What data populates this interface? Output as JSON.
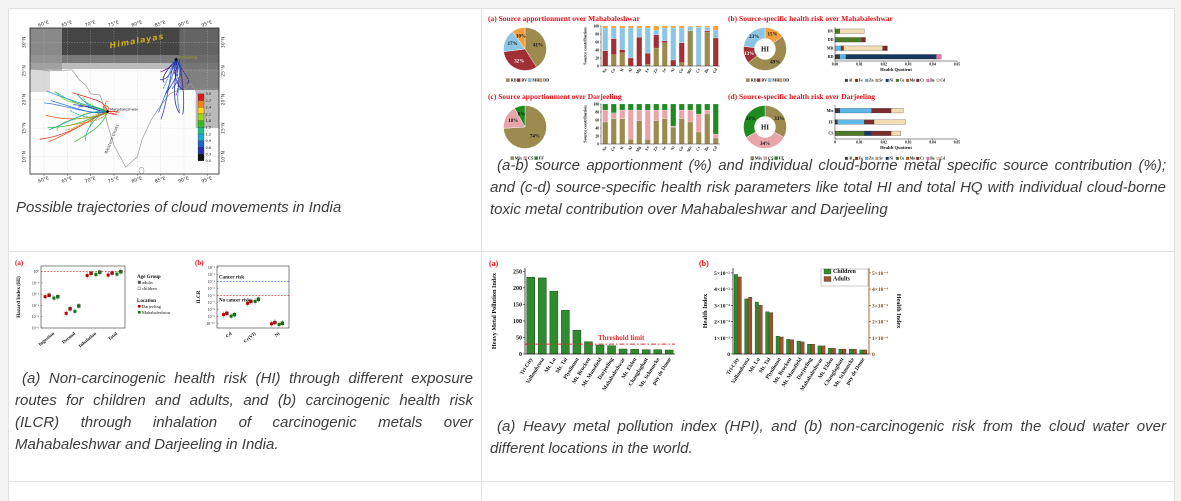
{
  "page": {
    "bg": "#f3f3f3",
    "cell_bg": "#ffffff",
    "border_color": "#e2e2e2"
  },
  "captions": {
    "map": "Possible trajectories of cloud movements in India",
    "apportionment": "(a-b) source apportionment (%) and individual cloud-borne metal specific source contribution (%); and (c-d) source-specific health risk parameters like total HI and total HQ with individual cloud-borne toxic metal contribution over Mahabaleshwar and Darjeeling",
    "risk": "(a) Non-carcinogenic health risk (HI) through different exposure routes for children and adults, and (b) carcinogenic health risk (ILCR) through inhalation of carcinogenic metals over Mahabaleshwar and Darjeeling in India.",
    "hpi": "(a) Heavy metal pollution index (HPI), and (b) non-carcinogenic risk from the cloud water over different locations in the world."
  },
  "chart_data": {
    "map": {
      "type": "map",
      "lon_ticks": [
        "60°E",
        "65°E",
        "70°E",
        "75°E",
        "80°E",
        "85°E",
        "90°E",
        "95°E"
      ],
      "lon_vals": [
        60,
        65,
        70,
        75,
        80,
        85,
        90,
        95
      ],
      "lat_ticks": [
        "30°N",
        "25°N",
        "20°N",
        "15°N",
        "10°N"
      ],
      "lat_vals": [
        30,
        25,
        20,
        15,
        10
      ],
      "region_label": "Himalayas",
      "ghats_label": "Western Ghats",
      "sites": [
        {
          "name": "Darjeeling",
          "lon": 88.3,
          "lat": 27.0,
          "label_color": "#a8a800"
        },
        {
          "name": "Mahabaleshwar",
          "lon": 73.6,
          "lat": 17.9,
          "label_color": "#222222"
        }
      ],
      "colorbar": {
        "ticks": [
          "3.0",
          "2.7",
          "2.4",
          "2.1",
          "1.8",
          "1.5",
          "1.2",
          "0.9",
          "0.6",
          "0.3",
          "0.0"
        ],
        "colors": [
          "#d7191c",
          "#f08019",
          "#ffd219",
          "#9bd41c",
          "#33bc22",
          "#1cc287",
          "#1fa8d8",
          "#2264cc",
          "#2d2db4",
          "#141414"
        ]
      },
      "clusters": [
        {
          "n": 24,
          "site": 1,
          "box": [
            59,
            12.5,
            71,
            21.5
          ],
          "seed": 7,
          "colors": [
            "#d7191c",
            "#f08019",
            "#ffd219",
            "#7ccc1c",
            "#2eb82e",
            "#13ae8e",
            "#22a3d8",
            "#2a6bd8",
            "#2233bb",
            "#13c013",
            "#0aa0c0",
            "#e84c0c"
          ]
        },
        {
          "n": 15,
          "site": 0,
          "box": [
            84.5,
            16,
            91,
            25
          ],
          "seed": 23,
          "colors": [
            "#2233bb",
            "#3a1c9c",
            "#5a10a0",
            "#1c58c8",
            "#1a1a80",
            "#26269c",
            "#2a7bd8"
          ]
        },
        {
          "n": 5,
          "site": 1,
          "box": [
            72.2,
            16.3,
            76.5,
            19.8
          ],
          "seed": 41,
          "colors": [
            "#d7191c",
            "#e84c0c",
            "#f08019"
          ]
        }
      ]
    },
    "metals": [
      "Na",
      "Ca",
      "K",
      "Al",
      "Mg",
      "Fe",
      "Zn",
      "Sr",
      "Ni",
      "Cu",
      "Mn",
      "Cr",
      "Ba",
      "Cd"
    ],
    "hq_metals": [
      "Al",
      "Fe",
      "Zn",
      "Sr",
      "Ni",
      "Cu",
      "Mn",
      "Cr",
      "Ba",
      "Cd"
    ],
    "metal_colors": {
      "Al": "#3b3b3b",
      "Fe": "#8b2f00",
      "Zn": "#5bb8e8",
      "Sr": "#c8a165",
      "Ni": "#17375e",
      "Cu": "#4e7a27",
      "Mn": "#c55a11",
      "Cr": "#7b2c2c",
      "Ba": "#e878b0",
      "Cd": "#f2dcb3"
    },
    "quad_a": {
      "type": "pie+stacked-bar",
      "title": "(a)  Source apportionment over Mahabaleshwar",
      "sources": [
        "RD",
        "BV",
        "MR",
        "DD"
      ],
      "source_colors": [
        "#9c8a4e",
        "#a03036",
        "#8cc6e4",
        "#f2a03d"
      ],
      "pie_values": [
        41,
        32,
        17,
        10
      ],
      "pie_labels": [
        "41%",
        "32%",
        "17%",
        "10%"
      ],
      "label_colors": [
        "#111111",
        "#ffffff",
        "#111111",
        "#111111"
      ],
      "ylabel": "Source contribution",
      "yticks": [
        0,
        20,
        40,
        60,
        80,
        100
      ],
      "bars": [
        [
          0,
          38,
          57,
          5
        ],
        [
          28,
          40,
          27,
          5
        ],
        [
          33,
          8,
          54,
          5
        ],
        [
          0,
          20,
          75,
          5
        ],
        [
          0,
          72,
          23,
          5
        ],
        [
          4,
          28,
          63,
          5
        ],
        [
          45,
          33,
          12,
          10
        ],
        [
          58,
          5,
          32,
          5
        ],
        [
          0,
          15,
          80,
          5
        ],
        [
          8,
          50,
          37,
          5
        ],
        [
          88,
          0,
          10,
          2
        ],
        [
          0,
          2,
          95,
          3
        ],
        [
          85,
          3,
          9,
          3
        ],
        [
          0,
          70,
          20,
          10
        ]
      ]
    },
    "quad_b": {
      "type": "donut+hbar",
      "title": "(b)  Source-specific health risk over Mahabaleshwar",
      "center_label": "HI",
      "donut_values": [
        15,
        49,
        13,
        23
      ],
      "donut_labels": [
        "15%",
        "49%",
        "13%",
        "23%"
      ],
      "donut_colors": [
        "#f2a03d",
        "#9c8a4e",
        "#a03036",
        "#8cc6e4"
      ],
      "donut_label_colors": [
        "#111111",
        "#111111",
        "#ffffff",
        "#111111"
      ],
      "legend": [
        "RD",
        "BV",
        "MR",
        "DD"
      ],
      "legend_colors": [
        "#9c8a4e",
        "#a03036",
        "#8cc6e4",
        "#f2a03d"
      ],
      "xlabel": "Health Quotient",
      "xticks": [
        "0.00",
        "0.01",
        "0.02",
        "0.03",
        "0.04",
        "0.05"
      ],
      "xmax": 0.05,
      "rows": [
        {
          "label": "BV",
          "segments": [
            [
              "Cu",
              0.002
            ],
            [
              "Cd",
              0.01
            ]
          ]
        },
        {
          "label": "DD",
          "segments": [
            [
              "Cu",
              0.011
            ],
            [
              "Cr",
              0.0015
            ]
          ]
        },
        {
          "label": "MR",
          "segments": [
            [
              "Zn",
              0.0025
            ],
            [
              "Fe",
              0.001
            ],
            [
              "Cd",
              0.016
            ],
            [
              "Cr",
              0.002
            ]
          ]
        },
        {
          "label": "RD",
          "segments": [
            [
              "Al",
              0.002
            ],
            [
              "Zn",
              0.0025
            ],
            [
              "Ni",
              0.037
            ],
            [
              "Ba",
              0.002
            ]
          ]
        }
      ]
    },
    "quad_c": {
      "type": "pie+stacked-bar",
      "title": "(c)  Source apportionment over Darjeeling",
      "sources": [
        "Mix",
        "CS",
        "FF"
      ],
      "source_colors": [
        "#9c8a4e",
        "#e8a6aa",
        "#1f8a1f"
      ],
      "pie_values": [
        74,
        18,
        8
      ],
      "pie_labels": [
        "74%",
        "18%",
        "8%"
      ],
      "label_colors": [
        "#111111",
        "#111111",
        "#111111"
      ],
      "ylabel": "Source contribution",
      "yticks": [
        0,
        20,
        40,
        60,
        80,
        100
      ],
      "bars": [
        [
          55,
          30,
          15
        ],
        [
          63,
          15,
          22
        ],
        [
          63,
          22,
          15
        ],
        [
          12,
          73,
          15
        ],
        [
          58,
          27,
          15
        ],
        [
          12,
          73,
          15
        ],
        [
          58,
          27,
          15
        ],
        [
          63,
          22,
          15
        ],
        [
          42,
          3,
          55
        ],
        [
          63,
          22,
          15
        ],
        [
          55,
          30,
          15
        ],
        [
          30,
          45,
          25
        ],
        [
          75,
          10,
          15
        ],
        [
          15,
          10,
          75
        ]
      ]
    },
    "quad_d": {
      "type": "donut+hbar",
      "title": "(d)  Source-specific health risk over Darjeeling",
      "center_label": "HI",
      "donut_values": [
        33,
        34,
        33
      ],
      "donut_labels": [
        "33%",
        "34%",
        "33%"
      ],
      "donut_colors": [
        "#9c8a4e",
        "#e8a6aa",
        "#1f8a1f"
      ],
      "donut_label_colors": [
        "#111111",
        "#111111",
        "#111111"
      ],
      "legend": [
        "Mix",
        "CS",
        "FF"
      ],
      "legend_colors": [
        "#9c8a4e",
        "#e8a6aa",
        "#1f8a1f"
      ],
      "xlabel": "Health Quotient",
      "xticks": [
        "0",
        "0.01",
        "0.02",
        "0.03",
        "0.04",
        "0.05"
      ],
      "xmax": 0.05,
      "rows": [
        {
          "label": "Mix",
          "segments": [
            [
              "Al",
              0.002
            ],
            [
              "Zn",
              0.013
            ],
            [
              "Cr",
              0.008
            ],
            [
              "Cd",
              0.005
            ]
          ]
        },
        {
          "label": "FF",
          "segments": [
            [
              "Al",
              0.001
            ],
            [
              "Zn",
              0.011
            ],
            [
              "Cr",
              0.004
            ],
            [
              "Cd",
              0.013
            ]
          ]
        },
        {
          "label": "CS",
          "segments": [
            [
              "Cu",
              0.012
            ],
            [
              "Ni",
              0.003
            ],
            [
              "Cr",
              0.008
            ],
            [
              "Cd",
              0.004
            ]
          ]
        }
      ]
    },
    "scatter_a": {
      "type": "scatter",
      "panel_letter": "(a)",
      "ylabel": "Hazard Index (HI)",
      "yticks": [
        [
          "10⁰",
          1
        ],
        [
          "10⁻¹",
          0.1
        ],
        [
          "10⁻²",
          0.01
        ],
        [
          "10⁻³",
          0.001
        ],
        [
          "10⁻⁴",
          0.0001
        ],
        [
          "10⁻⁵",
          1e-05
        ]
      ],
      "categories": [
        "Ingestion",
        "Dermal",
        "Inhalation",
        "Total"
      ],
      "ref_value": 1,
      "ref_color": "#e03030",
      "points": [
        [
          0.006,
          0.008,
          0.0045,
          0.006
        ],
        [
          0.0002,
          0.0005,
          0.0003,
          0.0009
        ],
        [
          0.45,
          0.7,
          0.55,
          0.9
        ],
        [
          0.5,
          0.75,
          0.6,
          1.0
        ]
      ]
    },
    "scatter_legend": {
      "age_title": "Age Group",
      "age_items": [
        "adults",
        "children"
      ],
      "loc_title": "Location",
      "loc_items": [
        [
          "Darjeeling",
          "#c00000"
        ],
        [
          "Mahabaleshwar",
          "#0b7a0b"
        ]
      ]
    },
    "scatter_b": {
      "type": "scatter",
      "panel_letter": "(b)",
      "ylabel": "ILCR",
      "yticks": [
        [
          "10⁻²",
          0.01
        ],
        [
          "10⁻³",
          0.001
        ],
        [
          "10⁻⁴",
          0.0001
        ],
        [
          "10⁻⁵",
          1e-05
        ],
        [
          "10⁻⁶",
          1e-06
        ],
        [
          "10⁻⁷",
          1e-07
        ],
        [
          "10⁻⁸",
          1e-08
        ],
        [
          "10⁻⁹",
          1e-09
        ],
        [
          "10⁻¹⁰",
          1e-10
        ]
      ],
      "categories": [
        "Cd",
        "Cr(VI)",
        "Ni"
      ],
      "cancer_label": "Cancer risk",
      "no_cancer_label": "No cancer risk",
      "cancer_line": 0.0001,
      "cancer_color": "#4169e1",
      "no_cancer_line": 1e-06,
      "no_cancer_color": "#e03030",
      "points": [
        [
          2e-09,
          3e-09,
          1.2e-09,
          2e-09
        ],
        [
          8e-08,
          1.5e-07,
          1.5e-07,
          3e-07
        ],
        [
          1e-10,
          1.5e-10,
          8e-11,
          1.2e-10
        ]
      ]
    },
    "series_colors": [
      "#c00000",
      "#c00000",
      "#0b7a0b",
      "#0b7a0b"
    ],
    "locations": [
      "Tri-City",
      "Vallombrosa",
      "Mt. Lu",
      "Mt. Tai",
      "Plynlimon",
      "Mt. Brocken",
      "Mt. Mansfield",
      "Darjeeling",
      "Mahabaleshwar",
      "Mt. Elden",
      "Changlaghatt",
      "Mt. Schmucke",
      "puy de Dome"
    ],
    "hpi_a": {
      "type": "bar",
      "panel_letter": "(a)",
      "ylabel": "Heavy Metal Pollution Index",
      "yticks": [
        0,
        50,
        100,
        150,
        200,
        250
      ],
      "ymax": 260,
      "bar_color": "#2e8b2e",
      "values": [
        232,
        230,
        190,
        132,
        72,
        37,
        27,
        25,
        15,
        14,
        13,
        13,
        12
      ],
      "threshold": 30,
      "threshold_label": "Threshold limit",
      "threshold_color": "#e03030"
    },
    "health_b": {
      "type": "grouped-bar",
      "panel_letter": "(b)",
      "ylabel_left": "Health Index",
      "ylabel_right": "Health Index",
      "left_ticks": [
        "0",
        "1×10⁻²",
        "2×10⁻²",
        "3×10⁻²",
        "4×10⁻²",
        "5×10⁻²"
      ],
      "right_ticks": [
        "0",
        "1×10⁻⁴",
        "2×10⁻⁴",
        "3×10⁻⁴",
        "4×10⁻⁴",
        "5×10⁻⁴"
      ],
      "right_color": "#8a4a10",
      "ymax": 5.3,
      "series": [
        {
          "name": "Children",
          "color": "#2e8b2e",
          "values": [
            4.9,
            3.4,
            3.2,
            2.6,
            1.1,
            0.9,
            0.8,
            0.6,
            0.5,
            0.35,
            0.3,
            0.3,
            0.25
          ]
        },
        {
          "name": "Adults",
          "color": "#a0522d",
          "values": [
            4.75,
            3.5,
            3.0,
            2.55,
            1.05,
            0.88,
            0.75,
            0.6,
            0.5,
            0.35,
            0.3,
            0.3,
            0.25
          ]
        }
      ]
    }
  }
}
